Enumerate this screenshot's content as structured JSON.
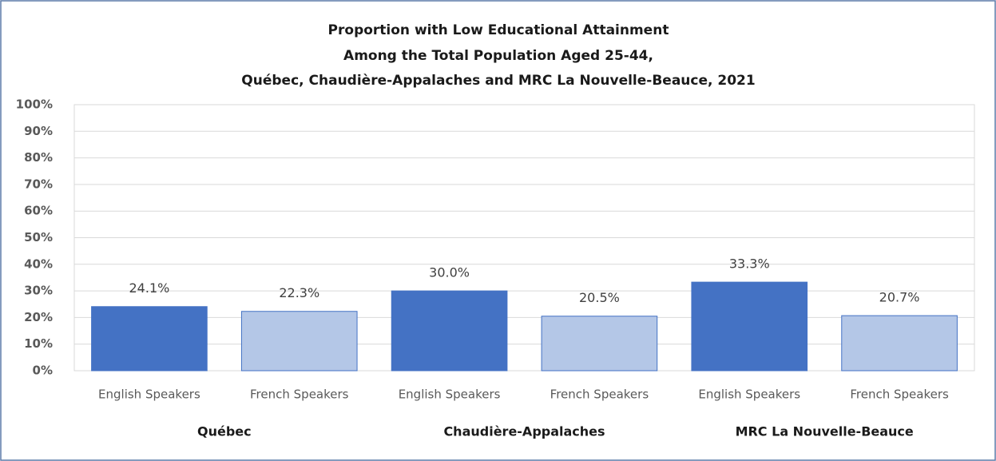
{
  "chart_data": {
    "type": "bar",
    "title": [
      "Proportion with Low Educational Attainment",
      "Among the Total Population Aged 25-44,",
      "Québec, Chaudière-Appalaches and MRC La Nouvelle-Beauce, 2021"
    ],
    "categories": [
      "English Speakers",
      "French Speakers",
      "English Speakers",
      "French Speakers",
      "English Speakers",
      "French Speakers"
    ],
    "groups": [
      "Québec",
      "Chaudière-Appalaches",
      "MRC La Nouvelle-Beauce"
    ],
    "values": [
      24.1,
      22.3,
      30.0,
      20.5,
      33.3,
      20.7
    ],
    "value_labels": [
      "24.1%",
      "22.3%",
      "30.0%",
      "20.5%",
      "33.3%",
      "20.7%"
    ],
    "colors": [
      "#4472c4",
      "#b4c7e7",
      "#4472c4",
      "#b4c7e7",
      "#4472c4",
      "#b4c7e7"
    ],
    "ylim": [
      0,
      100
    ],
    "yticks": [
      {
        "value": 0,
        "label": "0%"
      },
      {
        "value": 10,
        "label": "10%"
      },
      {
        "value": 20,
        "label": "20%"
      },
      {
        "value": 30,
        "label": "30%"
      },
      {
        "value": 40,
        "label": "40%"
      },
      {
        "value": 50,
        "label": "50%"
      },
      {
        "value": 60,
        "label": "60%"
      },
      {
        "value": 70,
        "label": "70%"
      },
      {
        "value": 80,
        "label": "80%"
      },
      {
        "value": 90,
        "label": "90%"
      },
      {
        "value": 100,
        "label": "100%"
      }
    ],
    "grid": true
  }
}
